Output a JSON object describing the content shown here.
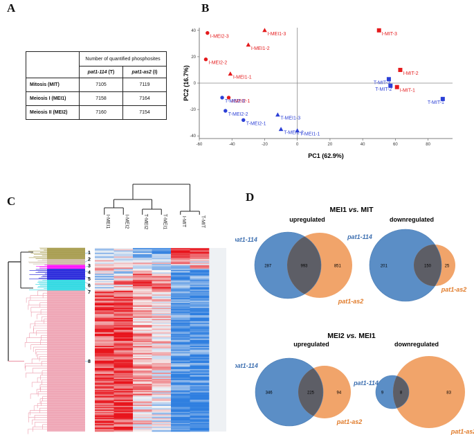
{
  "panels": {
    "A": "A",
    "B": "B",
    "C": "C",
    "D": "D"
  },
  "table": {
    "header": "Number of quantified phosphosites",
    "col1_gene": "pat1-114",
    "col1_suffix": " (T)",
    "col2_gene": "pat1-as2",
    "col2_suffix": " (I)",
    "rows": [
      {
        "label": "Mitosis (MIT)",
        "t": "7105",
        "i": "7119"
      },
      {
        "label": "Meiosis I (MEI1)",
        "t": "7158",
        "i": "7164"
      },
      {
        "label": "Meiosis II (MEI2)",
        "t": "7160",
        "i": "7154"
      }
    ]
  },
  "chart_data": [
    {
      "type": "scatter",
      "title": "",
      "xlabel": "PC1 (62.9%)",
      "ylabel": "PC2 (16.7%)",
      "xlim": [
        -60,
        95
      ],
      "ylim": [
        -42,
        42
      ],
      "xticks": [
        -60,
        -40,
        -20,
        0,
        20,
        40,
        60,
        80
      ],
      "yticks": [
        40,
        20,
        0,
        -20,
        -40
      ],
      "colors": {
        "I": "#e41a1c",
        "T": "#2b3fd6"
      },
      "points": [
        {
          "label": "I-MEI2-3",
          "x": -55,
          "y": 38,
          "shape": "circle",
          "group": "I"
        },
        {
          "label": "I-MEI2-2",
          "x": -56,
          "y": 18,
          "shape": "circle",
          "group": "I"
        },
        {
          "label": "I-MEI2-1",
          "x": -42,
          "y": -11,
          "shape": "circle",
          "group": "I"
        },
        {
          "label": "I-MEI1-3",
          "x": -20,
          "y": 40,
          "shape": "triangle",
          "group": "I"
        },
        {
          "label": "I-MEI1-2",
          "x": -30,
          "y": 29,
          "shape": "triangle",
          "group": "I"
        },
        {
          "label": "I-MEI1-1",
          "x": -41,
          "y": 7,
          "shape": "triangle",
          "group": "I"
        },
        {
          "label": "I-MIT-3",
          "x": 50,
          "y": 40,
          "shape": "square",
          "group": "I"
        },
        {
          "label": "I-MIT-2",
          "x": 63,
          "y": 10,
          "shape": "square",
          "group": "I"
        },
        {
          "label": "I-MIT-1",
          "x": 61,
          "y": -3,
          "shape": "square",
          "group": "I"
        },
        {
          "label": "T-MEI2-3",
          "x": -46,
          "y": -11,
          "shape": "circle",
          "group": "T"
        },
        {
          "label": "T-MEI2-2",
          "x": -44,
          "y": -21,
          "shape": "circle",
          "group": "T"
        },
        {
          "label": "T-MEI2-1",
          "x": -33,
          "y": -28,
          "shape": "circle",
          "group": "T"
        },
        {
          "label": "T-MEI1-3",
          "x": -12,
          "y": -24,
          "shape": "triangle",
          "group": "T"
        },
        {
          "label": "T-MEI1-2",
          "x": -10,
          "y": -35,
          "shape": "triangle",
          "group": "T"
        },
        {
          "label": "T-MEI1-1",
          "x": 0,
          "y": -36,
          "shape": "triangle",
          "group": "T"
        },
        {
          "label": "T-MIT-3",
          "x": 56,
          "y": 3,
          "shape": "square",
          "group": "T"
        },
        {
          "label": "T-MIT-2",
          "x": 57,
          "y": -2,
          "shape": "square",
          "group": "T"
        },
        {
          "label": "T-MIT-1",
          "x": 89,
          "y": -12,
          "shape": "square",
          "group": "T"
        }
      ]
    },
    {
      "type": "heatmap",
      "columns": [
        "I-MEI1",
        "I-MEI2",
        "T-MEI2",
        "T-MEI1",
        "I-MIT",
        "T-MIT"
      ],
      "clusters": [
        "1",
        "2",
        "3",
        "4",
        "5",
        "6",
        "7",
        "8"
      ],
      "cluster_colors": [
        "#a09440",
        "#c9b8a0",
        "#ff00ff",
        "#1818d8",
        "#1818d8",
        "#20d6e0",
        "#20d6e0",
        "#ec9aab"
      ],
      "cluster_fractions": [
        0.06,
        0.03,
        0.02,
        0.03,
        0.03,
        0.03,
        0.03,
        0.77
      ],
      "colors": {
        "up": "#e8141c",
        "down": "#2f7fe0",
        "mid": "#f5f5f5"
      }
    },
    {
      "type": "venn",
      "groups": [
        {
          "section": "MEI1 vs. MIT",
          "title": "upregulated",
          "set_a": "pat1-114",
          "set_b": "pat1-as2",
          "only_a": 287,
          "both": 993,
          "only_b": 851
        },
        {
          "section": "MEI1 vs. MIT",
          "title": "downregulated",
          "set_a": "pat1-114",
          "set_b": "pat1-as2",
          "only_a": 201,
          "both": 150,
          "only_b": 25
        },
        {
          "section": "MEI2 vs. MEI1",
          "title": "upregulated",
          "set_a": "pat1-114",
          "set_b": "pat1-as2",
          "only_a": 346,
          "both": 225,
          "only_b": 94
        },
        {
          "section": "MEI2 vs. MEI1",
          "title": "downregulated",
          "set_a": "pat1-114",
          "set_b": "pat1-as2",
          "only_a": 9,
          "both": 8,
          "only_b": 83
        }
      ],
      "colors": {
        "a": "#5b8ec6",
        "b": "#f1a46a",
        "overlap": "#5d5e66"
      }
    }
  ],
  "venn_titles": {
    "sec1_a": "MEI1 ",
    "sec1_vs": "vs.",
    "sec1_b": " MIT",
    "sec2_a": "MEI2 ",
    "sec2_vs": "vs.",
    "sec2_b": " MEI1"
  }
}
